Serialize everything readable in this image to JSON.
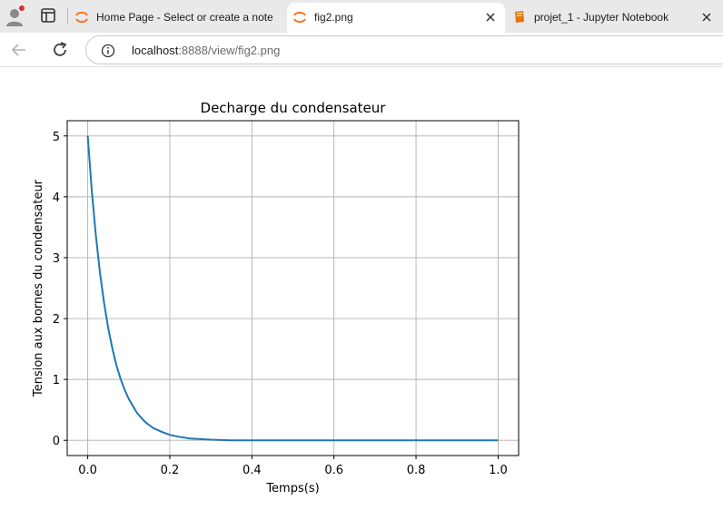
{
  "browser": {
    "tabs": [
      {
        "title": "Home Page - Select or create a notebook",
        "icon": "jupyter-icon",
        "active": false
      },
      {
        "title": "fig2.png",
        "icon": "jupyter-icon",
        "active": true
      },
      {
        "title": "projet_1 - Jupyter Notebook",
        "icon": "notebook-icon",
        "active": false
      }
    ],
    "address": {
      "host": "localhost",
      "rest": ":8888/view/fig2.png"
    }
  },
  "colors": {
    "line": "#1f77b4",
    "grid": "#b0b0b0",
    "jupyter_orange": "#f37726",
    "notebook_orange": "#e8740c"
  },
  "chart_data": {
    "type": "line",
    "title": "Decharge du condensateur",
    "xlabel": "Temps(s)",
    "ylabel": "Tension aux bornes du condensateur",
    "xlim": [
      -0.05,
      1.05
    ],
    "ylim": [
      -0.25,
      5.25
    ],
    "xticks": [
      0.0,
      0.2,
      0.4,
      0.6,
      0.8,
      1.0
    ],
    "xtick_labels": [
      "0.0",
      "0.2",
      "0.4",
      "0.6",
      "0.8",
      "1.0"
    ],
    "yticks": [
      0,
      1,
      2,
      3,
      4,
      5
    ],
    "ytick_labels": [
      "0",
      "1",
      "2",
      "3",
      "4",
      "5"
    ],
    "grid": true,
    "series": [
      {
        "x": [
          0.0,
          0.01,
          0.02,
          0.03,
          0.04,
          0.05,
          0.06,
          0.07,
          0.08,
          0.09,
          0.1,
          0.12,
          0.14,
          0.16,
          0.18,
          0.2,
          0.22,
          0.25,
          0.3,
          0.35,
          0.4,
          0.5,
          0.6,
          0.7,
          0.8,
          0.9,
          1.0
        ],
        "y": [
          5.0,
          4.09,
          3.35,
          2.74,
          2.25,
          1.84,
          1.51,
          1.23,
          1.01,
          0.83,
          0.68,
          0.45,
          0.3,
          0.2,
          0.14,
          0.09,
          0.06,
          0.03,
          0.01,
          0.0,
          0.0,
          0.0,
          0.0,
          0.0,
          0.0,
          0.0,
          0.0
        ]
      }
    ]
  }
}
